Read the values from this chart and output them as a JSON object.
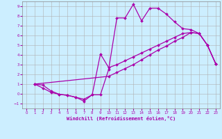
{
  "xlabel": "Windchill (Refroidissement éolien,°C)",
  "bg_color": "#cceeff",
  "grid_color": "#b0b0b0",
  "line_color": "#aa00aa",
  "xlim": [
    -0.5,
    23.5
  ],
  "ylim": [
    -1.5,
    9.5
  ],
  "xticks": [
    0,
    1,
    2,
    3,
    4,
    5,
    6,
    7,
    8,
    9,
    10,
    11,
    12,
    13,
    14,
    15,
    16,
    17,
    18,
    19,
    20,
    21,
    22,
    23
  ],
  "yticks": [
    -1,
    0,
    1,
    2,
    3,
    4,
    5,
    6,
    7,
    8,
    9
  ],
  "line1_x": [
    1,
    2,
    3,
    4,
    5,
    6,
    7,
    8,
    9,
    10,
    11,
    12,
    13,
    14,
    15,
    16,
    17,
    18,
    19,
    20,
    21,
    22,
    23
  ],
  "line1_y": [
    1.0,
    0.9,
    0.3,
    -0.05,
    -0.15,
    -0.35,
    -0.75,
    -0.1,
    -0.1,
    2.5,
    7.8,
    7.8,
    9.2,
    7.5,
    8.8,
    8.8,
    8.2,
    7.4,
    6.7,
    6.6,
    6.2,
    5.0,
    3.1
  ],
  "line2_x": [
    1,
    10,
    11,
    12,
    13,
    14,
    15,
    16,
    17,
    18,
    19,
    20,
    21,
    22,
    23
  ],
  "line2_y": [
    1.0,
    1.8,
    2.2,
    2.6,
    3.0,
    3.5,
    4.0,
    4.5,
    4.9,
    5.4,
    5.8,
    6.3,
    6.2,
    5.0,
    3.1
  ],
  "line3_x": [
    1,
    2,
    3,
    4,
    5,
    6,
    7,
    8,
    9,
    10,
    11,
    12,
    13,
    14,
    15,
    16,
    17,
    18,
    19,
    20,
    21,
    22,
    23
  ],
  "line3_y": [
    1.0,
    0.6,
    0.15,
    -0.05,
    -0.15,
    -0.35,
    -0.55,
    -0.1,
    4.1,
    2.7,
    3.0,
    3.4,
    3.8,
    4.2,
    4.6,
    5.0,
    5.4,
    5.8,
    6.2,
    6.3,
    6.2,
    5.0,
    3.1
  ]
}
